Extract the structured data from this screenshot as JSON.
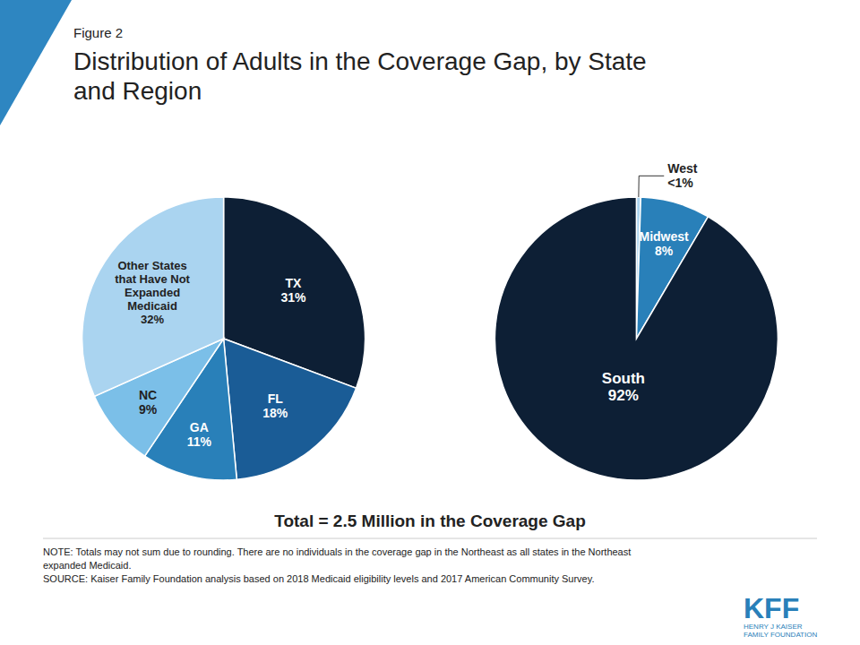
{
  "chart_data": [
    {
      "type": "pie",
      "title": "Distribution of Adults in the Coverage Gap, by State\nand Region",
      "categories": [
        "TX",
        "FL",
        "GA",
        "NC",
        "Other States\nthat Have Not\nExpanded\nMedicaid"
      ],
      "values": [
        31,
        18,
        11,
        9,
        32
      ],
      "value_labels": [
        "31%",
        "18%",
        "11%",
        "9%",
        "32%"
      ],
      "colors": [
        "#0d1f35",
        "#1a5c96",
        "#2980b9",
        "#7bbfe8",
        "#aad4f0"
      ],
      "data_labels": true,
      "annotations": [
        "Figure 2",
        "Total = 2.5 Million in the Coverage Gap",
        "NOTE:  Totals may not sum due to rounding. There are no individuals in the coverage gap in the Northeast as all states in the Northeast\nexpanded Medicaid.\nSOURCE:  Kaiser Family Foundation analysis based on 2018 Medicaid eligibility levels and 2017 American Community Survey.",
        "KFF",
        "HENRY J KAISER\nFAMILY FOUNDATION"
      ]
    },
    {
      "type": "pie",
      "categories": [
        "West",
        "Midwest",
        "South"
      ],
      "values": [
        0.5,
        8,
        92
      ],
      "value_labels": [
        "<1%",
        "8%",
        "92%"
      ],
      "colors": [
        "#aad4f0",
        "#2980b9",
        "#0d1f35"
      ],
      "data_labels": true
    }
  ]
}
